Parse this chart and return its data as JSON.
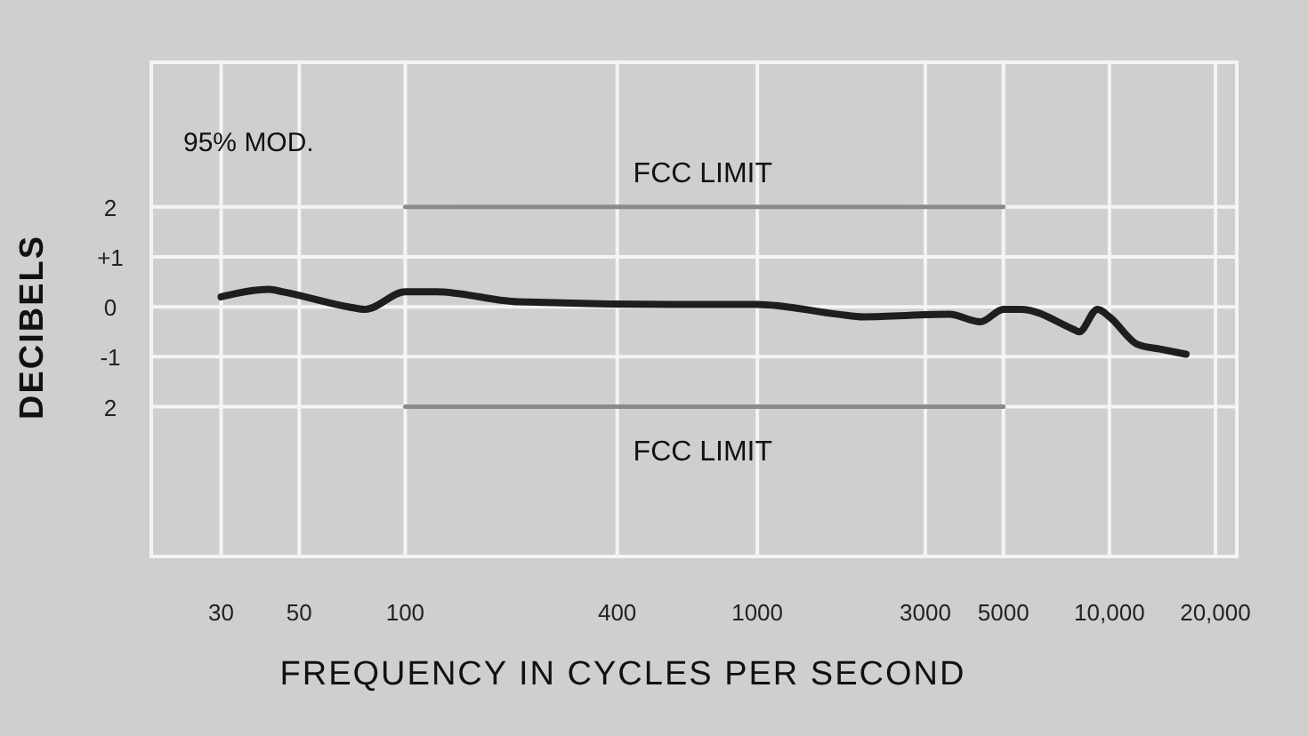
{
  "chart_data": {
    "type": "line",
    "xlabel": "FREQUENCY  IN  CYCLES  PER  SECOND",
    "ylabel": "DECIBELS",
    "log": "x",
    "grid": true,
    "xlim": [
      19,
      23000
    ],
    "xticks": [
      30,
      50,
      100,
      400,
      1000,
      3000,
      5000,
      {
        "value": 10000,
        "label": "10,000"
      },
      {
        "value": 20000,
        "label": "20,000"
      }
    ],
    "ylim": [
      -5,
      4.9
    ],
    "yticks": [
      {
        "value": 2,
        "label": "2"
      },
      {
        "value": 1,
        "label": "+1"
      },
      0,
      -1,
      {
        "value": -2,
        "label": "2"
      }
    ],
    "series": [
      {
        "color": "#1e1e1e",
        "x": [
          30,
          41,
          45,
          69,
          77,
          100,
          123,
          210,
          568,
          1000,
          1700,
          2000,
          3500,
          4300,
          5000,
          5600,
          7900,
          8200,
          9250,
          10000,
          12000,
          14000,
          16500
        ],
        "values": [
          0.2,
          0.35,
          0.3,
          0,
          -0.05,
          0.3,
          0.3,
          0.1,
          0.05,
          0.05,
          -0.15,
          -0.2,
          -0.15,
          -0.3,
          -0.05,
          -0.05,
          -0.45,
          -0.5,
          -0.05,
          -0.2,
          -0.75,
          -0.85,
          -0.95
        ]
      },
      {
        "color": "#8a8a8a",
        "x": [
          100,
          5000
        ],
        "values": [
          2,
          2
        ]
      },
      {
        "color": "#8a8a8a",
        "x": [
          100,
          5000
        ],
        "values": [
          -2,
          -2
        ]
      }
    ],
    "annotations": [
      "95% MOD.",
      {
        "text": "FCC LIMIT",
        "x": 700,
        "y": 2
      },
      {
        "text": "FCC LIMIT",
        "x": 700,
        "y": -2
      }
    ]
  }
}
